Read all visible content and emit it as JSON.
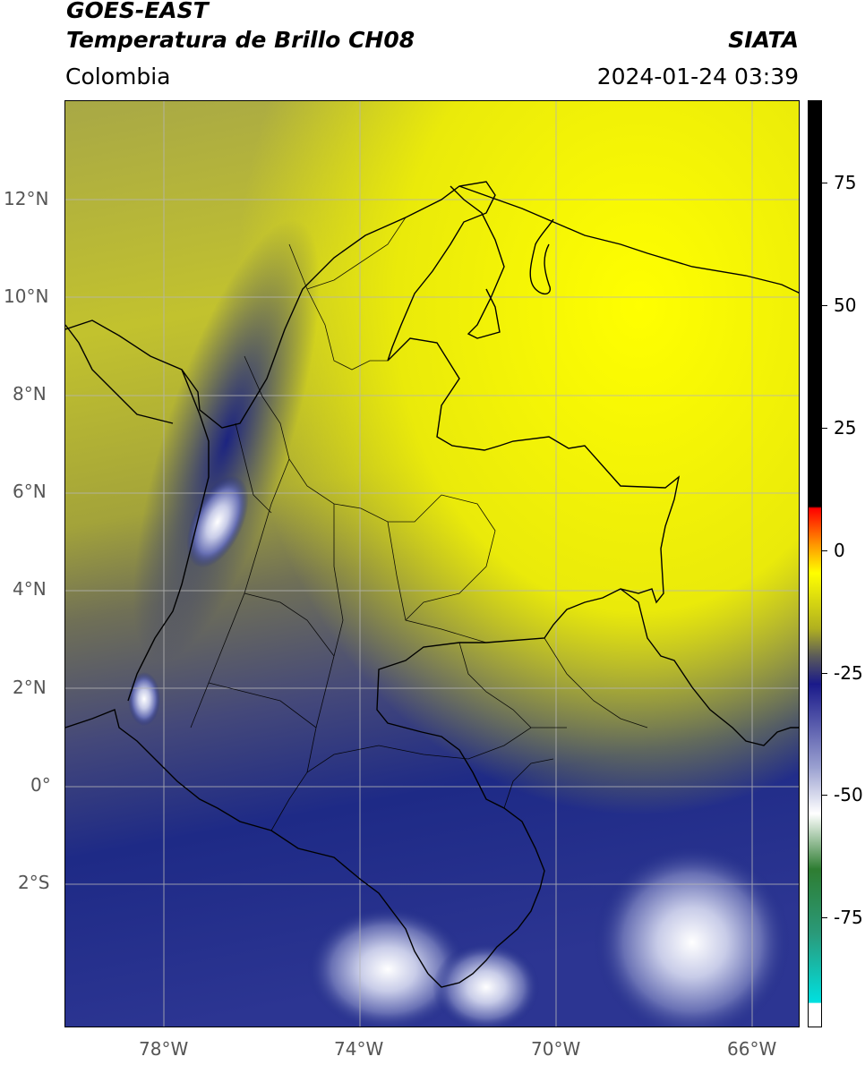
{
  "header": {
    "title_line1": "GOES-EAST",
    "title_line2": "Temperatura de Brillo CH08",
    "brand": "SIATA",
    "region": "Colombia",
    "timestamp": "2024-01-24 03:39"
  },
  "map": {
    "lat_ticks": [
      "12°N",
      "10°N",
      "8°N",
      "6°N",
      "4°N",
      "2°N",
      "0°",
      "2°S"
    ],
    "lon_ticks": [
      "78°W",
      "74°W",
      "70°W",
      "66°W"
    ],
    "colors": {
      "warm": "#f2f200",
      "mid": "#8a8a4a",
      "cold": "#1e2a86",
      "very_cold": "#b8bce0",
      "coldest": "#ffffff",
      "grid": "#b5b5b5",
      "border": "#000000"
    }
  },
  "colorbar": {
    "labels": [
      "75",
      "50",
      "25",
      "0",
      "-25",
      "-50",
      "-75"
    ],
    "stops": [
      "#00e0e0",
      "#2a9a7a",
      "#2e7d32",
      "#ffffff",
      "#1a1a8a",
      "#5a5a5a",
      "#b0b020",
      "#ffff00",
      "#ff9900",
      "#ff0000",
      "#000000"
    ]
  }
}
